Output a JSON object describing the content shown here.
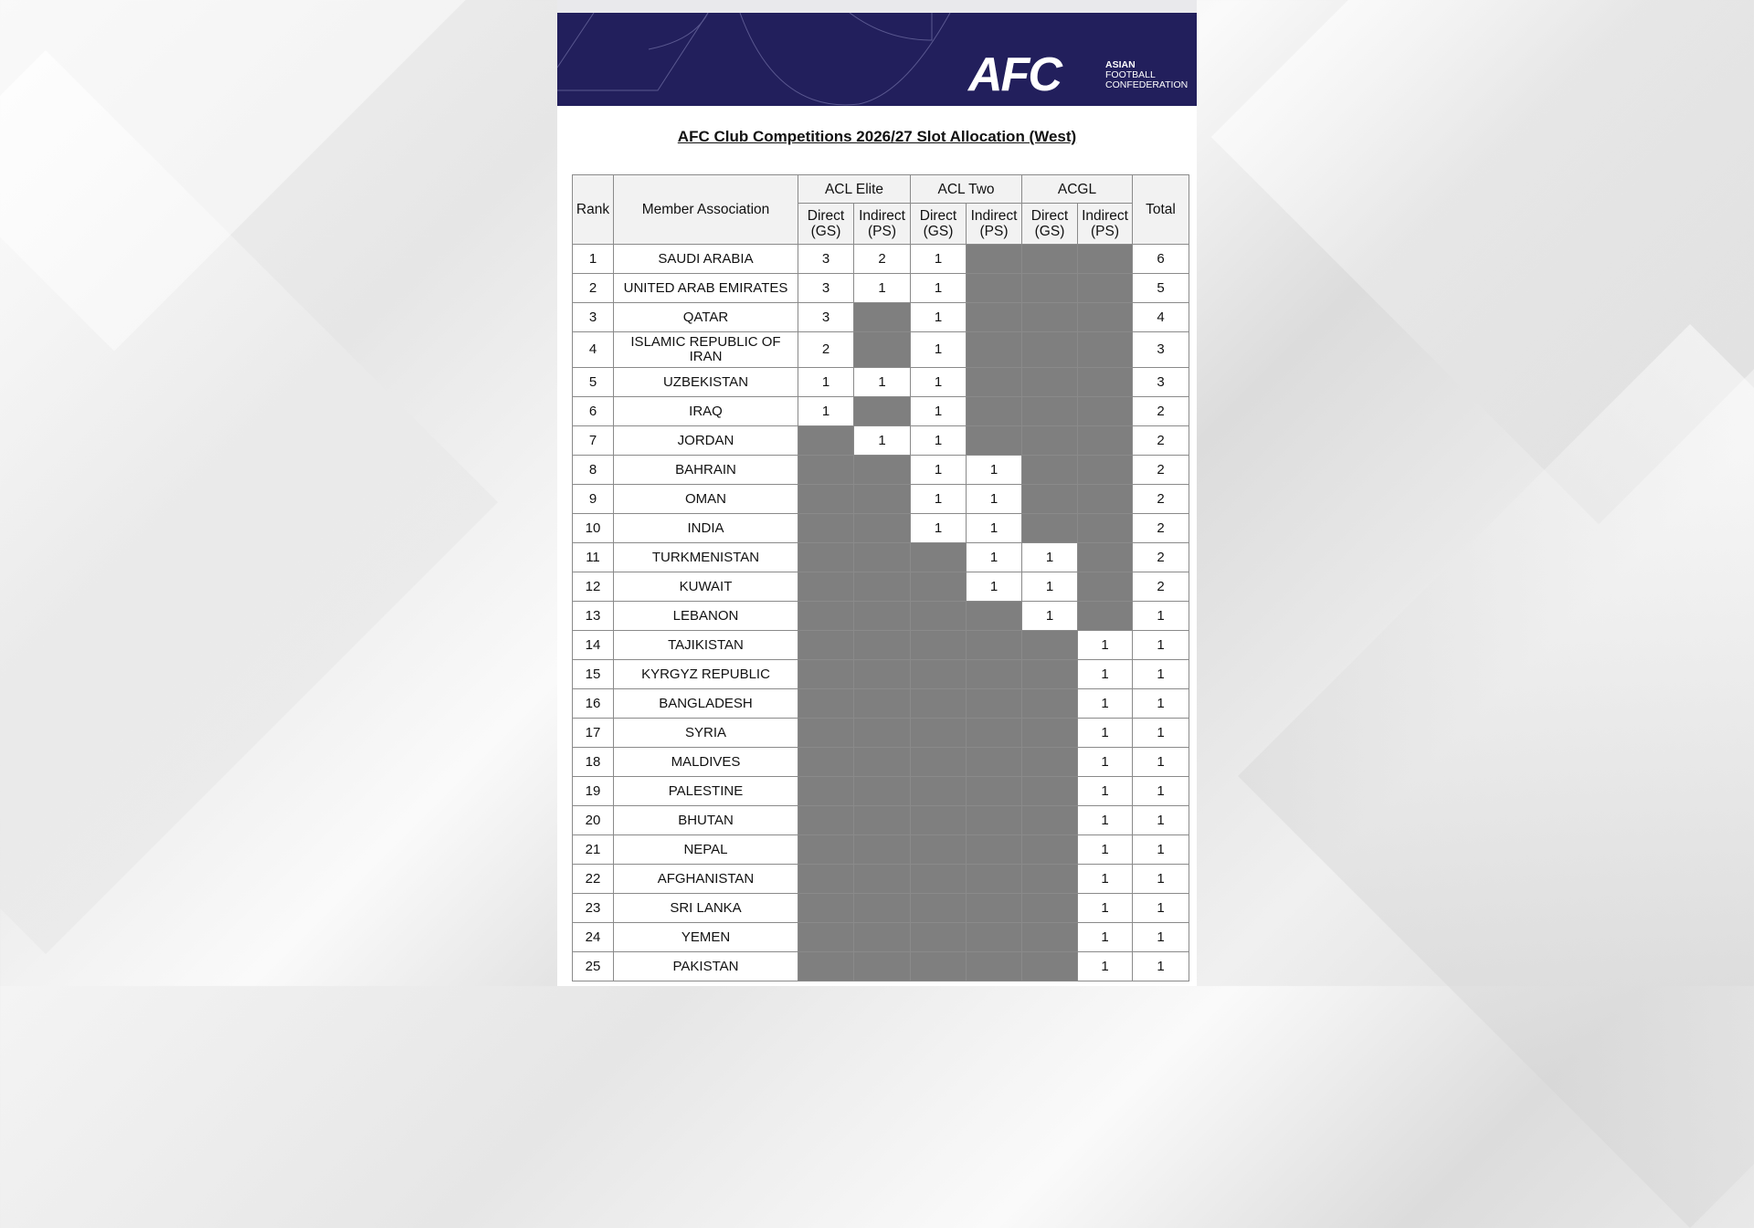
{
  "banner": {
    "logo": "AFC",
    "org_line1": "ASIAN",
    "org_line2": "FOOTBALL",
    "org_line3": "CONFEDERATION",
    "color": "#221f5c"
  },
  "title": "AFC Club Competitions 2026/27 Slot Allocation (West)",
  "table": {
    "headers": {
      "rank": "Rank",
      "member": "Member Association",
      "groups": [
        "ACL Elite",
        "ACL Two",
        "ACGL"
      ],
      "direct": "Direct (GS)",
      "indirect": "Indirect (PS)",
      "total": "Total"
    },
    "shaded_color": "#7f7f7f",
    "rows": [
      {
        "rank": "1",
        "name": "SAUDI ARABIA",
        "cells": [
          "3",
          "2",
          "1",
          null,
          null,
          null
        ],
        "total": "6"
      },
      {
        "rank": "2",
        "name": "UNITED ARAB EMIRATES",
        "cells": [
          "3",
          "1",
          "1",
          null,
          null,
          null
        ],
        "total": "5"
      },
      {
        "rank": "3",
        "name": "QATAR",
        "cells": [
          "3",
          null,
          "1",
          null,
          null,
          null
        ],
        "total": "4"
      },
      {
        "rank": "4",
        "name": "ISLAMIC REPUBLIC OF IRAN",
        "cells": [
          "2",
          null,
          "1",
          null,
          null,
          null
        ],
        "total": "3"
      },
      {
        "rank": "5",
        "name": "UZBEKISTAN",
        "cells": [
          "1",
          "1",
          "1",
          null,
          null,
          null
        ],
        "total": "3"
      },
      {
        "rank": "6",
        "name": "IRAQ",
        "cells": [
          "1",
          null,
          "1",
          null,
          null,
          null
        ],
        "total": "2"
      },
      {
        "rank": "7",
        "name": "JORDAN",
        "cells": [
          null,
          "1",
          "1",
          null,
          null,
          null
        ],
        "total": "2"
      },
      {
        "rank": "8",
        "name": "BAHRAIN",
        "cells": [
          null,
          null,
          "1",
          "1",
          null,
          null
        ],
        "total": "2"
      },
      {
        "rank": "9",
        "name": "OMAN",
        "cells": [
          null,
          null,
          "1",
          "1",
          null,
          null
        ],
        "total": "2"
      },
      {
        "rank": "10",
        "name": "INDIA",
        "cells": [
          null,
          null,
          "1",
          "1",
          null,
          null
        ],
        "total": "2"
      },
      {
        "rank": "11",
        "name": "TURKMENISTAN",
        "cells": [
          null,
          null,
          null,
          "1",
          "1",
          null
        ],
        "total": "2"
      },
      {
        "rank": "12",
        "name": "KUWAIT",
        "cells": [
          null,
          null,
          null,
          "1",
          "1",
          null
        ],
        "total": "2"
      },
      {
        "rank": "13",
        "name": "LEBANON",
        "cells": [
          null,
          null,
          null,
          null,
          "1",
          null
        ],
        "total": "1"
      },
      {
        "rank": "14",
        "name": "TAJIKISTAN",
        "cells": [
          null,
          null,
          null,
          null,
          null,
          "1"
        ],
        "total": "1"
      },
      {
        "rank": "15",
        "name": "KYRGYZ REPUBLIC",
        "cells": [
          null,
          null,
          null,
          null,
          null,
          "1"
        ],
        "total": "1"
      },
      {
        "rank": "16",
        "name": "BANGLADESH",
        "cells": [
          null,
          null,
          null,
          null,
          null,
          "1"
        ],
        "total": "1"
      },
      {
        "rank": "17",
        "name": "SYRIA",
        "cells": [
          null,
          null,
          null,
          null,
          null,
          "1"
        ],
        "total": "1"
      },
      {
        "rank": "18",
        "name": "MALDIVES",
        "cells": [
          null,
          null,
          null,
          null,
          null,
          "1"
        ],
        "total": "1"
      },
      {
        "rank": "19",
        "name": "PALESTINE",
        "cells": [
          null,
          null,
          null,
          null,
          null,
          "1"
        ],
        "total": "1"
      },
      {
        "rank": "20",
        "name": "BHUTAN",
        "cells": [
          null,
          null,
          null,
          null,
          null,
          "1"
        ],
        "total": "1"
      },
      {
        "rank": "21",
        "name": "NEPAL",
        "cells": [
          null,
          null,
          null,
          null,
          null,
          "1"
        ],
        "total": "1"
      },
      {
        "rank": "22",
        "name": "AFGHANISTAN",
        "cells": [
          null,
          null,
          null,
          null,
          null,
          "1"
        ],
        "total": "1"
      },
      {
        "rank": "23",
        "name": "SRI LANKA",
        "cells": [
          null,
          null,
          null,
          null,
          null,
          "1"
        ],
        "total": "1"
      },
      {
        "rank": "24",
        "name": "YEMEN",
        "cells": [
          null,
          null,
          null,
          null,
          null,
          "1"
        ],
        "total": "1"
      },
      {
        "rank": "25",
        "name": "PAKISTAN",
        "cells": [
          null,
          null,
          null,
          null,
          null,
          "1"
        ],
        "total": "1"
      }
    ]
  }
}
